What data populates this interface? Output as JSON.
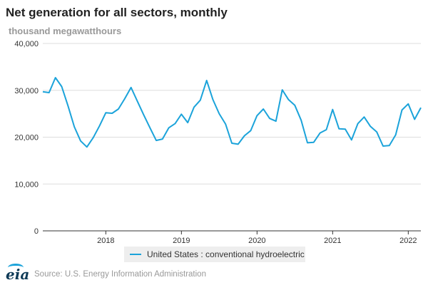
{
  "header": {
    "title": "Net generation for all sectors, monthly",
    "units": "thousand megawatthours"
  },
  "footer": {
    "logo_text": "eia",
    "source": "Source: U.S. Energy Information Administration"
  },
  "colors": {
    "series": "#1ba3da",
    "grid": "#dddddd",
    "axis": "#333333"
  },
  "chart_data": {
    "type": "line",
    "title": "Net generation for all sectors, monthly",
    "ylabel": "thousand megawatthours",
    "xlabel": "",
    "ylim": [
      0,
      40000
    ],
    "yticks": [
      0,
      10000,
      20000,
      30000,
      40000
    ],
    "ytick_labels": [
      "0",
      "10,000",
      "20,000",
      "30,000",
      "40,000"
    ],
    "xticks": [
      "2018",
      "2019",
      "2020",
      "2021",
      "2022"
    ],
    "grid": "horizontal",
    "legend_placement": "bottom-center",
    "x_start": "2017-03",
    "x_end": "2022-03",
    "series": [
      {
        "name": "United States : conventional hydroelectric",
        "x": [
          "2017-03",
          "2017-04",
          "2017-05",
          "2017-06",
          "2017-07",
          "2017-08",
          "2017-09",
          "2017-10",
          "2017-11",
          "2017-12",
          "2018-01",
          "2018-02",
          "2018-03",
          "2018-04",
          "2018-05",
          "2018-06",
          "2018-07",
          "2018-08",
          "2018-09",
          "2018-10",
          "2018-11",
          "2018-12",
          "2019-01",
          "2019-02",
          "2019-03",
          "2019-04",
          "2019-05",
          "2019-06",
          "2019-07",
          "2019-08",
          "2019-09",
          "2019-10",
          "2019-11",
          "2019-12",
          "2020-01",
          "2020-02",
          "2020-03",
          "2020-04",
          "2020-05",
          "2020-06",
          "2020-07",
          "2020-08",
          "2020-09",
          "2020-10",
          "2020-11",
          "2020-12",
          "2021-01",
          "2021-02",
          "2021-03",
          "2021-04",
          "2021-05",
          "2021-06",
          "2021-07",
          "2021-08",
          "2021-09",
          "2021-10",
          "2021-11",
          "2021-12",
          "2022-01",
          "2022-02",
          "2022-03"
        ],
        "values": [
          29700,
          29500,
          32700,
          30800,
          26700,
          22200,
          19200,
          17900,
          19900,
          22400,
          25200,
          25100,
          26000,
          28200,
          30600,
          27700,
          24800,
          22000,
          19300,
          19600,
          22000,
          22900,
          24900,
          23100,
          26400,
          27900,
          32100,
          28000,
          25000,
          22800,
          18700,
          18500,
          20300,
          21400,
          24600,
          26000,
          24000,
          23400,
          30100,
          28000,
          26800,
          23600,
          18800,
          18900,
          20900,
          21600,
          25900,
          21800,
          21700,
          19400,
          22900,
          24300,
          22300,
          21100,
          18100,
          18200,
          20500,
          25800,
          27100,
          23800,
          26300
        ]
      }
    ]
  }
}
